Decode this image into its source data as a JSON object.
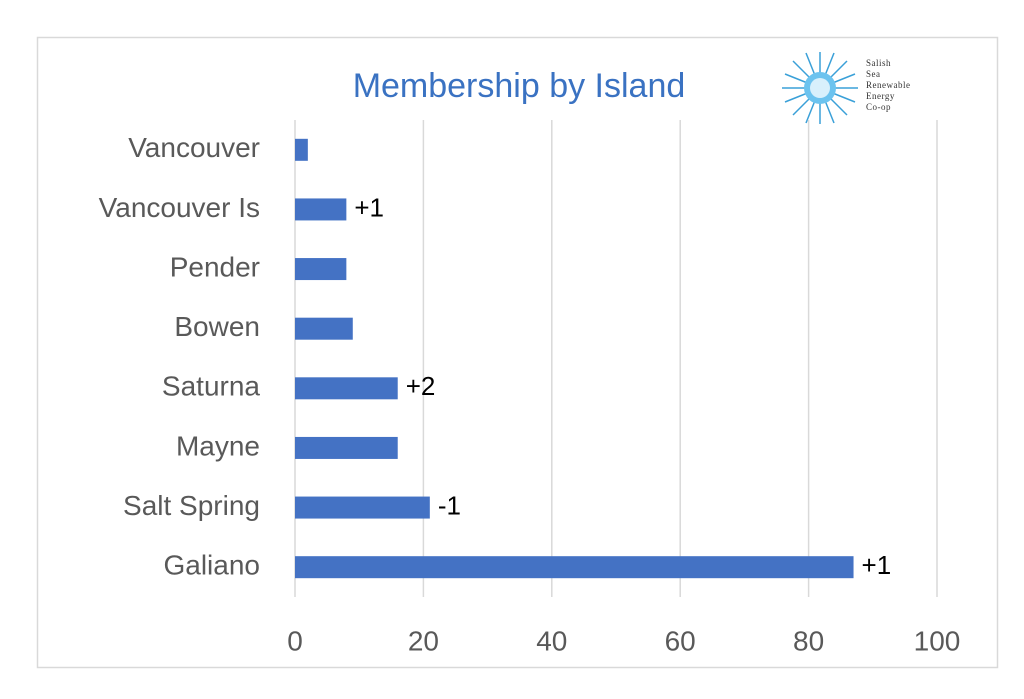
{
  "chart_data": {
    "type": "barh",
    "title": "Membership by Island",
    "categories": [
      "Vancouver",
      "Vancouver Is",
      "Pender",
      "Bowen",
      "Saturna",
      "Mayne",
      "Salt Spring",
      "Galiano"
    ],
    "values": [
      2,
      8,
      8,
      9,
      16,
      16,
      21,
      87
    ],
    "color": "#4472c4",
    "xlim": [
      0,
      100
    ],
    "xticks": [
      0,
      20,
      40,
      60,
      80,
      100
    ],
    "grid": true,
    "annotations": [
      {
        "category": "Vancouver Is",
        "text": "+1"
      },
      {
        "category": "Saturna",
        "text": "+2"
      },
      {
        "category": "Salt Spring",
        "text": "-1"
      },
      {
        "category": "Galiano",
        "text": "+1"
      }
    ],
    "logo": [
      "Salish",
      "Sea",
      "Renewable",
      "Energy",
      "Co-op"
    ]
  }
}
